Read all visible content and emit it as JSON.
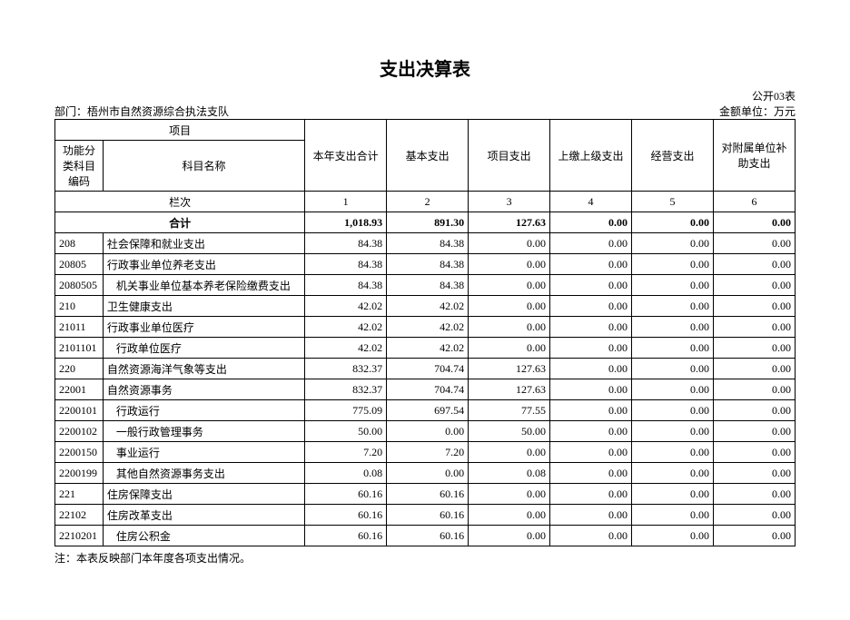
{
  "title": "支出决算表",
  "report_code": "公开03表",
  "department_label": "部门：",
  "department_name": "梧州市自然资源综合执法支队",
  "unit_label": "金额单位：万元",
  "headers": {
    "project": "项目",
    "code": "功能分类科目编码",
    "name": "科目名称",
    "col1": "本年支出合计",
    "col2": "基本支出",
    "col3": "项目支出",
    "col4": "上缴上级支出",
    "col5": "经营支出",
    "col6": "对附属单位补助支出",
    "lanci": "栏次",
    "lc1": "1",
    "lc2": "2",
    "lc3": "3",
    "lc4": "4",
    "lc5": "5",
    "lc6": "6",
    "total": "合计"
  },
  "total_row": {
    "v1": "1,018.93",
    "v2": "891.30",
    "v3": "127.63",
    "v4": "0.00",
    "v5": "0.00",
    "v6": "0.00"
  },
  "rows": [
    {
      "code": "208",
      "name": "社会保障和就业支出",
      "indent": 0,
      "v1": "84.38",
      "v2": "84.38",
      "v3": "0.00",
      "v4": "0.00",
      "v5": "0.00",
      "v6": "0.00"
    },
    {
      "code": "20805",
      "name": "行政事业单位养老支出",
      "indent": 0,
      "v1": "84.38",
      "v2": "84.38",
      "v3": "0.00",
      "v4": "0.00",
      "v5": "0.00",
      "v6": "0.00"
    },
    {
      "code": "2080505",
      "name": "机关事业单位基本养老保险缴费支出",
      "indent": 1,
      "v1": "84.38",
      "v2": "84.38",
      "v3": "0.00",
      "v4": "0.00",
      "v5": "0.00",
      "v6": "0.00"
    },
    {
      "code": "210",
      "name": "卫生健康支出",
      "indent": 0,
      "v1": "42.02",
      "v2": "42.02",
      "v3": "0.00",
      "v4": "0.00",
      "v5": "0.00",
      "v6": "0.00"
    },
    {
      "code": "21011",
      "name": "行政事业单位医疗",
      "indent": 0,
      "v1": "42.02",
      "v2": "42.02",
      "v3": "0.00",
      "v4": "0.00",
      "v5": "0.00",
      "v6": "0.00"
    },
    {
      "code": "2101101",
      "name": "行政单位医疗",
      "indent": 1,
      "v1": "42.02",
      "v2": "42.02",
      "v3": "0.00",
      "v4": "0.00",
      "v5": "0.00",
      "v6": "0.00"
    },
    {
      "code": "220",
      "name": "自然资源海洋气象等支出",
      "indent": 0,
      "v1": "832.37",
      "v2": "704.74",
      "v3": "127.63",
      "v4": "0.00",
      "v5": "0.00",
      "v6": "0.00"
    },
    {
      "code": "22001",
      "name": "自然资源事务",
      "indent": 0,
      "v1": "832.37",
      "v2": "704.74",
      "v3": "127.63",
      "v4": "0.00",
      "v5": "0.00",
      "v6": "0.00"
    },
    {
      "code": "2200101",
      "name": "行政运行",
      "indent": 1,
      "v1": "775.09",
      "v2": "697.54",
      "v3": "77.55",
      "v4": "0.00",
      "v5": "0.00",
      "v6": "0.00"
    },
    {
      "code": "2200102",
      "name": "一般行政管理事务",
      "indent": 1,
      "v1": "50.00",
      "v2": "0.00",
      "v3": "50.00",
      "v4": "0.00",
      "v5": "0.00",
      "v6": "0.00"
    },
    {
      "code": "2200150",
      "name": "事业运行",
      "indent": 1,
      "v1": "7.20",
      "v2": "7.20",
      "v3": "0.00",
      "v4": "0.00",
      "v5": "0.00",
      "v6": "0.00"
    },
    {
      "code": "2200199",
      "name": "其他自然资源事务支出",
      "indent": 1,
      "v1": "0.08",
      "v2": "0.00",
      "v3": "0.08",
      "v4": "0.00",
      "v5": "0.00",
      "v6": "0.00"
    },
    {
      "code": "221",
      "name": "住房保障支出",
      "indent": 0,
      "v1": "60.16",
      "v2": "60.16",
      "v3": "0.00",
      "v4": "0.00",
      "v5": "0.00",
      "v6": "0.00"
    },
    {
      "code": "22102",
      "name": "住房改革支出",
      "indent": 0,
      "v1": "60.16",
      "v2": "60.16",
      "v3": "0.00",
      "v4": "0.00",
      "v5": "0.00",
      "v6": "0.00"
    },
    {
      "code": "2210201",
      "name": "住房公积金",
      "indent": 1,
      "v1": "60.16",
      "v2": "60.16",
      "v3": "0.00",
      "v4": "0.00",
      "v5": "0.00",
      "v6": "0.00"
    }
  ],
  "footnote": "注：本表反映部门本年度各项支出情况。"
}
